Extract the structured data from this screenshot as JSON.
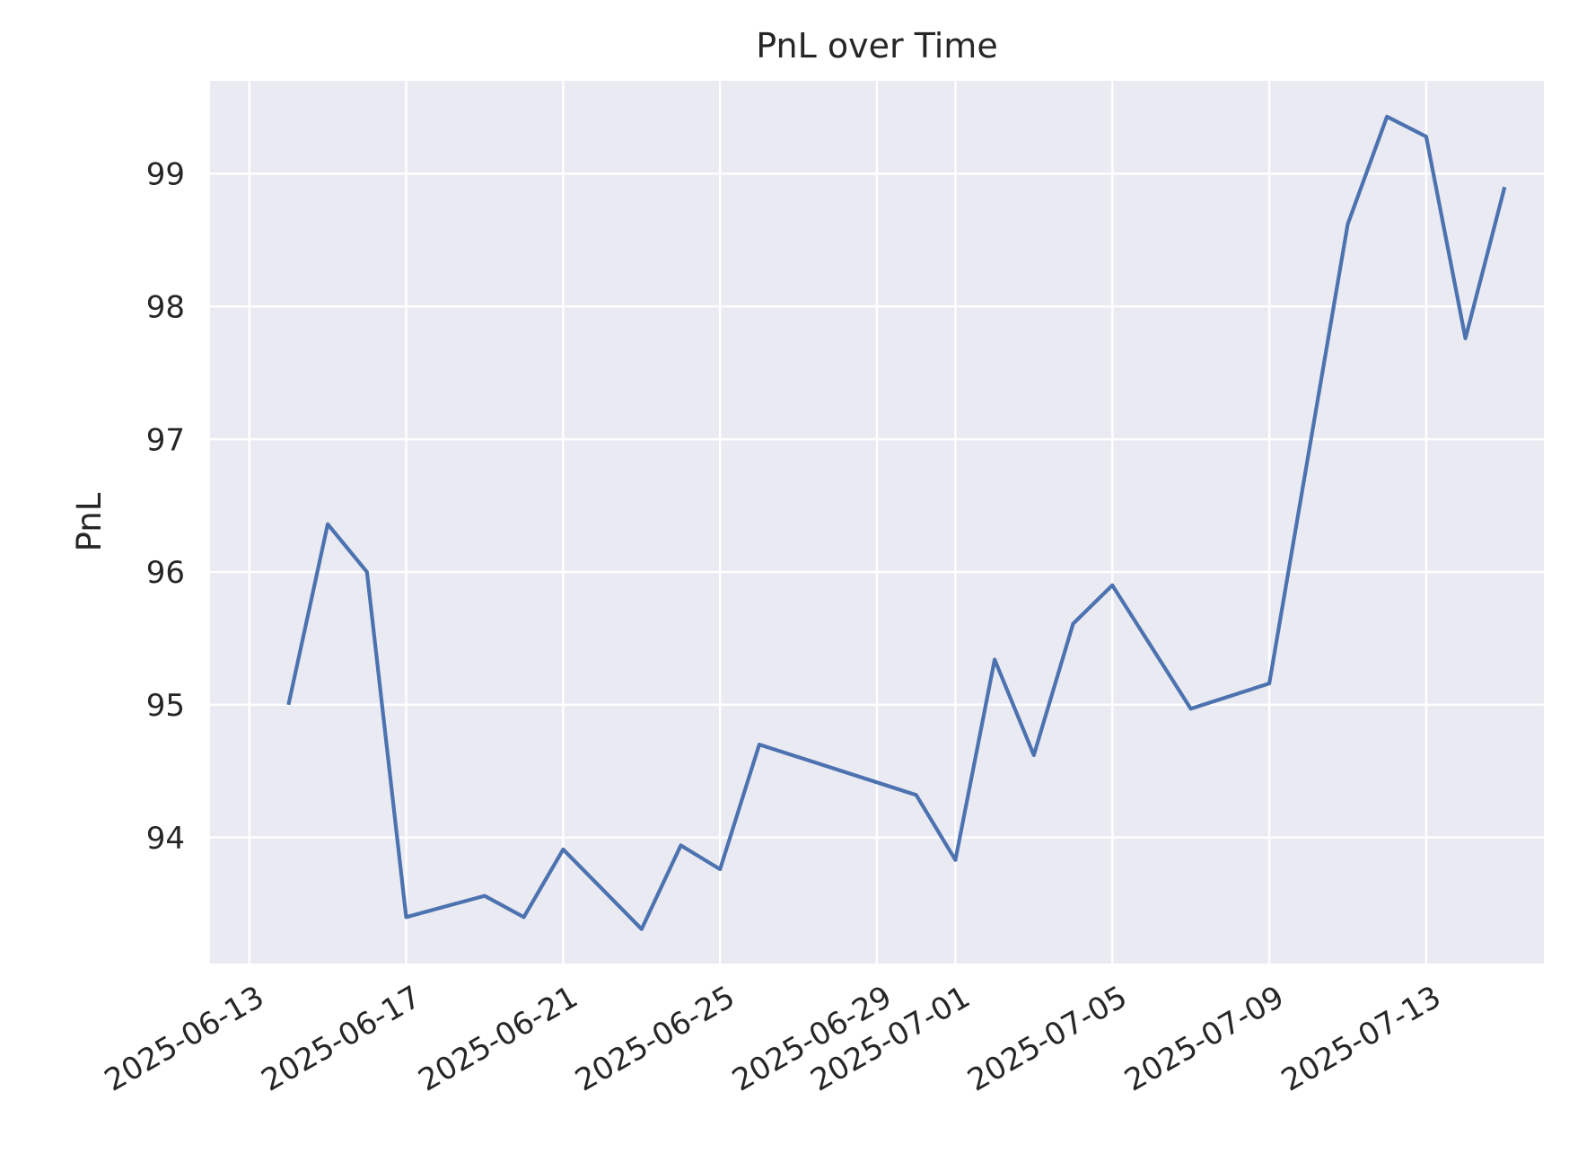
{
  "chart_data": {
    "type": "line",
    "title": "PnL over Time",
    "xlabel": "",
    "ylabel": "PnL",
    "grid": true,
    "style": {
      "background": "#eaeaf2",
      "grid_color": "#ffffff",
      "line_color": "#4c72b0",
      "text_color": "#262626"
    },
    "xlim": [
      "2025-06-12",
      "2025-07-16"
    ],
    "ylim": [
      93.05,
      99.7
    ],
    "x_ticks": [
      "2025-06-13",
      "2025-06-17",
      "2025-06-21",
      "2025-06-25",
      "2025-06-29",
      "2025-07-01",
      "2025-07-05",
      "2025-07-09",
      "2025-07-13"
    ],
    "y_ticks": [
      94,
      95,
      96,
      97,
      98,
      99
    ],
    "series": [
      {
        "x": [
          "2025-06-14",
          "2025-06-15",
          "2025-06-16",
          "2025-06-17",
          "2025-06-19",
          "2025-06-20",
          "2025-06-21",
          "2025-06-23",
          "2025-06-24",
          "2025-06-25",
          "2025-06-26",
          "2025-06-30",
          "2025-07-01",
          "2025-07-02",
          "2025-07-03",
          "2025-07-04",
          "2025-07-05",
          "2025-07-07",
          "2025-07-09",
          "2025-07-11",
          "2025-07-12",
          "2025-07-13",
          "2025-07-14",
          "2025-07-15"
        ],
        "values": [
          95.0,
          96.36,
          96.0,
          93.4,
          93.56,
          93.4,
          93.91,
          93.31,
          93.94,
          93.76,
          94.7,
          94.32,
          93.83,
          95.34,
          94.62,
          95.61,
          95.9,
          94.97,
          95.16,
          98.62,
          99.43,
          99.28,
          97.76,
          98.9
        ]
      }
    ]
  }
}
